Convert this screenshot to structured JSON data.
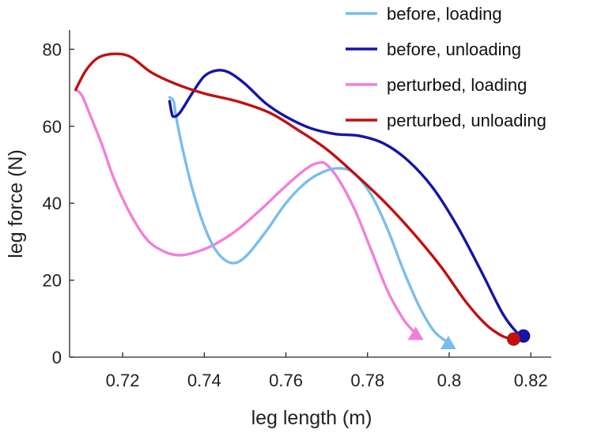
{
  "chart_data": {
    "type": "line",
    "title": "",
    "xlabel": "leg length (m)",
    "ylabel": "leg force (N)",
    "xlim": [
      0.707,
      0.825
    ],
    "ylim": [
      0,
      85
    ],
    "xticks": [
      0.72,
      0.74,
      0.76,
      0.78,
      0.8,
      0.82
    ],
    "xtick_labels": [
      "0.72",
      "0.74",
      "0.76",
      "0.78",
      "0.8",
      "0.82"
    ],
    "yticks": [
      0,
      20,
      40,
      60,
      80
    ],
    "ytick_labels": [
      "0",
      "20",
      "40",
      "60",
      "80"
    ],
    "grid": false,
    "legend_position": "top-right",
    "series": [
      {
        "name": "before, loading",
        "color": "#79bdf0",
        "end_marker": "triangle",
        "points": [
          [
            0.7315,
            67.5
          ],
          [
            0.7325,
            66.5
          ],
          [
            0.733,
            63.0
          ],
          [
            0.7345,
            55.0
          ],
          [
            0.737,
            44.0
          ],
          [
            0.74,
            34.0
          ],
          [
            0.743,
            27.5
          ],
          [
            0.7465,
            24.5
          ],
          [
            0.75,
            26.0
          ],
          [
            0.755,
            32.5
          ],
          [
            0.76,
            40.0
          ],
          [
            0.765,
            45.5
          ],
          [
            0.77,
            48.5
          ],
          [
            0.774,
            49.0
          ],
          [
            0.777,
            47.5
          ],
          [
            0.781,
            42.0
          ],
          [
            0.785,
            33.0
          ],
          [
            0.789,
            22.0
          ],
          [
            0.793,
            12.5
          ],
          [
            0.7965,
            6.5
          ],
          [
            0.7998,
            3.8
          ]
        ]
      },
      {
        "name": "before, unloading",
        "color": "#1414a8",
        "end_marker": "circle",
        "points": [
          [
            0.7315,
            66.5
          ],
          [
            0.732,
            63.5
          ],
          [
            0.7325,
            62.5
          ],
          [
            0.734,
            63.5
          ],
          [
            0.737,
            68.5
          ],
          [
            0.74,
            73.0
          ],
          [
            0.743,
            74.5
          ],
          [
            0.746,
            74.0
          ],
          [
            0.75,
            71.0
          ],
          [
            0.755,
            66.0
          ],
          [
            0.76,
            62.5
          ],
          [
            0.766,
            59.5
          ],
          [
            0.772,
            58.0
          ],
          [
            0.778,
            57.5
          ],
          [
            0.784,
            55.5
          ],
          [
            0.79,
            51.0
          ],
          [
            0.796,
            44.0
          ],
          [
            0.802,
            34.0
          ],
          [
            0.808,
            22.0
          ],
          [
            0.813,
            11.5
          ],
          [
            0.8165,
            6.5
          ],
          [
            0.8182,
            5.5
          ]
        ]
      },
      {
        "name": "perturbed, loading",
        "color": "#f27fd9",
        "end_marker": "triangle",
        "points": [
          [
            0.7085,
            69.5
          ],
          [
            0.71,
            68.0
          ],
          [
            0.712,
            63.0
          ],
          [
            0.715,
            55.0
          ],
          [
            0.718,
            46.0
          ],
          [
            0.722,
            37.0
          ],
          [
            0.726,
            30.5
          ],
          [
            0.73,
            27.5
          ],
          [
            0.7335,
            26.5
          ],
          [
            0.737,
            27.0
          ],
          [
            0.742,
            29.0
          ],
          [
            0.748,
            33.0
          ],
          [
            0.754,
            38.5
          ],
          [
            0.76,
            44.5
          ],
          [
            0.765,
            49.0
          ],
          [
            0.768,
            50.5
          ],
          [
            0.77,
            50.0
          ],
          [
            0.773,
            46.0
          ],
          [
            0.777,
            38.0
          ],
          [
            0.781,
            27.5
          ],
          [
            0.785,
            17.0
          ],
          [
            0.789,
            9.5
          ],
          [
            0.7918,
            6.2
          ]
        ]
      },
      {
        "name": "perturbed, unloading",
        "color": "#c01010",
        "end_marker": "circle",
        "points": [
          [
            0.7085,
            69.5
          ],
          [
            0.711,
            74.5
          ],
          [
            0.714,
            77.8
          ],
          [
            0.718,
            78.8
          ],
          [
            0.722,
            78.0
          ],
          [
            0.727,
            74.0
          ],
          [
            0.733,
            71.0
          ],
          [
            0.74,
            68.5
          ],
          [
            0.748,
            66.5
          ],
          [
            0.756,
            63.5
          ],
          [
            0.763,
            59.0
          ],
          [
            0.77,
            54.0
          ],
          [
            0.777,
            47.5
          ],
          [
            0.784,
            40.5
          ],
          [
            0.791,
            32.5
          ],
          [
            0.798,
            23.5
          ],
          [
            0.804,
            14.5
          ],
          [
            0.809,
            8.5
          ],
          [
            0.813,
            5.5
          ],
          [
            0.8158,
            4.7
          ]
        ]
      }
    ]
  }
}
